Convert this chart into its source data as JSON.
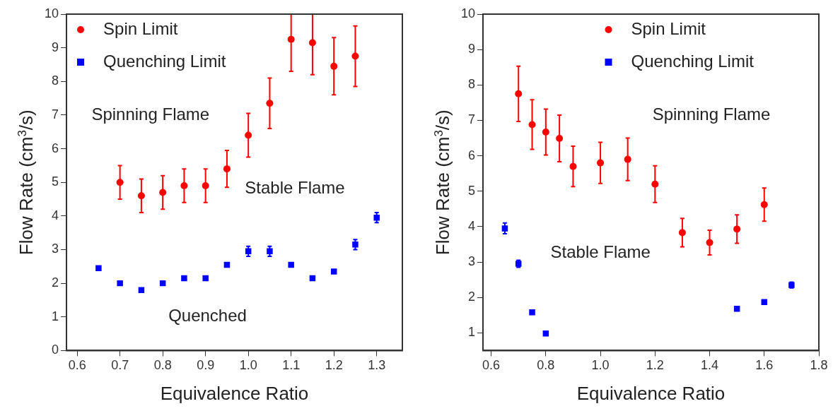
{
  "chart_data": [
    {
      "type": "scatter",
      "xlabel": "Equivalence Ratio",
      "ylabel": "Flow Rate (cm$^{3}$/s)",
      "xlim": [
        0.575,
        1.36
      ],
      "ylim": [
        0,
        10
      ],
      "xticks": [
        0.6,
        0.7,
        0.8,
        0.9,
        {
          "value": 1,
          "label": "1.0"
        },
        1.1,
        1.2,
        1.3
      ],
      "yticks": [
        0,
        1,
        2,
        3,
        4,
        5,
        6,
        7,
        8,
        9,
        10
      ],
      "grid": false,
      "legend": "top left",
      "series": [
        {
          "name": "Spin Limit",
          "color": "#ff0000",
          "marker": "circle",
          "x": [
            0.7,
            0.75,
            0.8,
            0.85,
            0.9,
            0.95,
            1.0,
            1.05,
            1.1,
            1.15,
            1.2,
            1.25
          ],
          "values": [
            5.0,
            4.6,
            4.7,
            4.9,
            4.9,
            5.4,
            6.4,
            7.35,
            9.25,
            9.15,
            8.45,
            8.75
          ],
          "errors": [
            0.5,
            0.5,
            0.5,
            0.5,
            0.5,
            0.55,
            0.65,
            0.75,
            [
              8.3,
              10
            ],
            [
              8.2,
              10
            ],
            0.85,
            0.9
          ]
        },
        {
          "name": "Quenching Limit",
          "color": "#0000ff",
          "marker": "square",
          "x": [
            0.65,
            0.7,
            0.75,
            0.8,
            0.85,
            0.9,
            0.95,
            1.0,
            1.05,
            1.1,
            1.15,
            1.2,
            1.25,
            1.3
          ],
          "values": [
            2.45,
            2.0,
            1.8,
            2.0,
            2.15,
            2.15,
            2.55,
            2.95,
            2.95,
            2.55,
            2.15,
            2.35,
            3.15,
            3.95
          ],
          "errors": [
            null,
            null,
            null,
            null,
            null,
            null,
            null,
            0.15,
            0.15,
            null,
            null,
            null,
            0.15,
            0.15
          ]
        }
      ],
      "annotations": [
        "Spinning Flame",
        "Stable Flame",
        "Quenched"
      ]
    },
    {
      "type": "scatter",
      "xlabel": "Equivalence Ratio",
      "ylabel": "Flow Rate (cm$^{3}$/s)",
      "xlim": [
        0.57,
        1.8
      ],
      "ylim": [
        0.5,
        10
      ],
      "xticks": [
        0.6,
        0.8,
        {
          "value": 1,
          "label": "1.0"
        },
        1.2,
        1.4,
        1.6,
        1.8
      ],
      "yticks": [
        1,
        2,
        3,
        4,
        5,
        6,
        7,
        8,
        9,
        10
      ],
      "grid": false,
      "legend": "top",
      "series": [
        {
          "name": "Spin Limit",
          "color": "#ff0000",
          "marker": "circle",
          "x": [
            0.7,
            0.75,
            0.8,
            0.85,
            0.9,
            1.0,
            1.1,
            1.2,
            1.3,
            1.4,
            1.5,
            1.6
          ],
          "values": [
            7.75,
            6.88,
            6.67,
            6.49,
            5.7,
            5.8,
            5.9,
            5.2,
            3.83,
            3.55,
            3.93,
            4.62
          ],
          "errors": [
            0.78,
            0.7,
            0.65,
            0.66,
            0.57,
            0.58,
            0.6,
            0.52,
            0.4,
            0.35,
            0.4,
            0.47
          ]
        },
        {
          "name": "Quenching Limit",
          "color": "#0000ff",
          "marker": "square",
          "x": [
            0.65,
            0.7,
            0.75,
            0.8,
            1.5,
            1.6,
            1.7
          ],
          "values": [
            3.95,
            2.95,
            1.58,
            0.98,
            1.68,
            1.87,
            2.35
          ],
          "errors": [
            0.15,
            0.1,
            null,
            null,
            null,
            null,
            0.08
          ]
        }
      ],
      "annotations": [
        "Spinning Flame",
        "Stable Flame"
      ]
    }
  ]
}
